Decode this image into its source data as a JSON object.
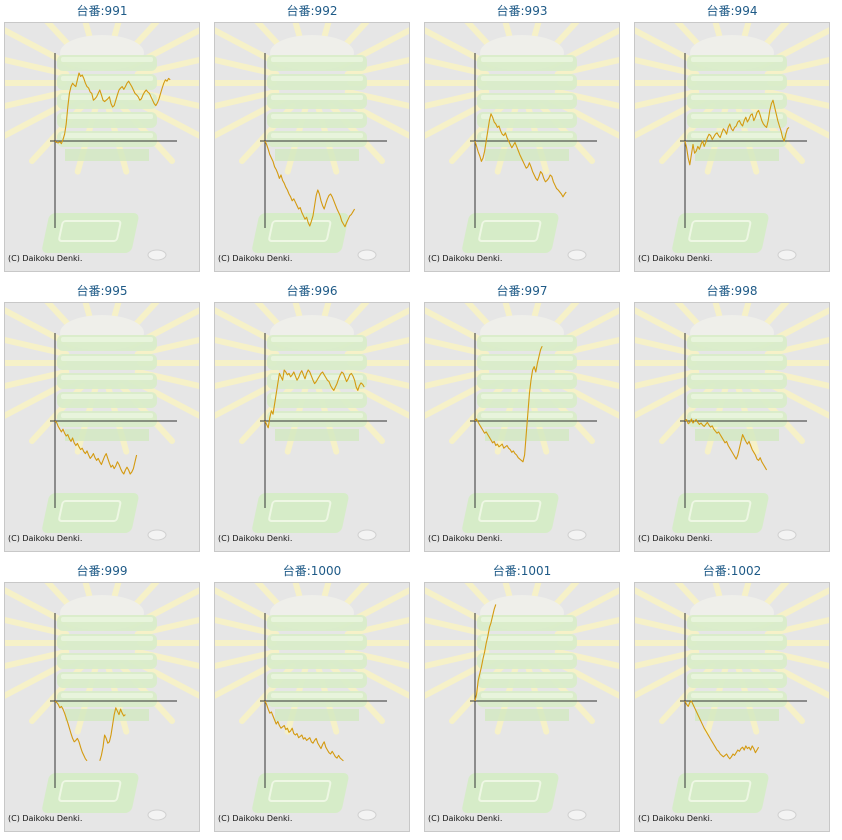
{
  "colors": {
    "line": "#d49a10",
    "axis": "#333333",
    "title": "#1e5a87"
  },
  "copyright": "(C) Daikoku Denki.",
  "chart_data": [
    {
      "type": "line",
      "title": "台番:991",
      "values": [
        0,
        -2,
        -3,
        -1,
        -4,
        2,
        10,
        25,
        50,
        70,
        80,
        85,
        82,
        80,
        90,
        100,
        95,
        97,
        92,
        85,
        80,
        78,
        72,
        70,
        60,
        62,
        65,
        70,
        75,
        68,
        60,
        58,
        60,
        62,
        65,
        55,
        50,
        52,
        60,
        68,
        75,
        78,
        80,
        76,
        80,
        85,
        88,
        84,
        80,
        75,
        70,
        68,
        65,
        60,
        62,
        68,
        72,
        75,
        72,
        70,
        65,
        60,
        55,
        52,
        56,
        62,
        70,
        78,
        85,
        90,
        88,
        92,
        90
      ]
    },
    {
      "type": "line",
      "title": "台番:992",
      "values": [
        0,
        -5,
        -12,
        -20,
        -25,
        -30,
        -38,
        -42,
        -48,
        -55,
        -50,
        -58,
        -62,
        -68,
        -72,
        -78,
        -82,
        -88,
        -85,
        -90,
        -95,
        -100,
        -98,
        -105,
        -110,
        -115,
        -112,
        -120,
        -125,
        -118,
        -110,
        -95,
        -80,
        -72,
        -78,
        -88,
        -95,
        -100,
        -92,
        -85,
        -80,
        -78,
        -82,
        -88,
        -94,
        -100,
        -105,
        -110,
        -118,
        -122,
        -126,
        -120,
        -115,
        -110,
        -108,
        -104,
        -100
      ]
    },
    {
      "type": "line",
      "title": "台番:993",
      "values": [
        0,
        -8,
        -16,
        -22,
        -30,
        -25,
        -15,
        0,
        15,
        30,
        40,
        35,
        28,
        25,
        20,
        22,
        15,
        10,
        8,
        12,
        5,
        0,
        -5,
        -10,
        -6,
        -2,
        -8,
        -14,
        -20,
        -25,
        -30,
        -35,
        -40,
        -38,
        -32,
        -38,
        -45,
        -50,
        -55,
        -58,
        -52,
        -45,
        -48,
        -55,
        -60,
        -58,
        -55,
        -50,
        -52,
        -60,
        -65,
        -70,
        -72,
        -75,
        -78,
        -82,
        -78,
        -75
      ]
    },
    {
      "type": "line",
      "title": "台番:994",
      "values": [
        0,
        -10,
        -25,
        -35,
        -20,
        -5,
        -18,
        -15,
        -8,
        -12,
        -5,
        0,
        -8,
        -2,
        5,
        10,
        8,
        2,
        6,
        10,
        12,
        8,
        5,
        12,
        18,
        15,
        10,
        20,
        25,
        18,
        15,
        20,
        22,
        28,
        30,
        25,
        22,
        30,
        35,
        28,
        32,
        38,
        40,
        30,
        35,
        42,
        45,
        38,
        30,
        25,
        22,
        20,
        30,
        45,
        55,
        60,
        50,
        40,
        30,
        22,
        15,
        5,
        0,
        10,
        18,
        20
      ]
    },
    {
      "type": "line",
      "title": "台番:995",
      "values": [
        0,
        -2,
        -8,
        -12,
        -16,
        -12,
        -18,
        -22,
        -20,
        -26,
        -30,
        -25,
        -32,
        -36,
        -33,
        -38,
        -42,
        -40,
        -45,
        -48,
        -44,
        -50,
        -55,
        -52,
        -48,
        -54,
        -58,
        -55,
        -60,
        -64,
        -58,
        -52,
        -48,
        -55,
        -62,
        -68,
        -65,
        -70,
        -66,
        -60,
        -64,
        -70,
        -75,
        -78,
        -72,
        -68,
        -72,
        -78,
        -75,
        -70,
        -60,
        -50
      ]
    },
    {
      "type": "line",
      "title": "台番:996",
      "values": [
        0,
        -5,
        -10,
        5,
        15,
        10,
        25,
        40,
        55,
        70,
        65,
        60,
        75,
        72,
        68,
        70,
        65,
        68,
        72,
        66,
        60,
        64,
        70,
        74,
        68,
        62,
        70,
        75,
        72,
        66,
        60,
        55,
        58,
        62,
        66,
        70,
        72,
        68,
        64,
        60,
        58,
        52,
        48,
        45,
        50,
        55,
        62,
        68,
        72,
        70,
        64,
        58,
        62,
        68,
        70,
        66,
        60,
        50,
        45,
        52,
        56,
        54,
        50
      ]
    },
    {
      "type": "line",
      "title": "台番:997",
      "values": [
        0,
        3,
        -2,
        -6,
        -10,
        -14,
        -18,
        -16,
        -20,
        -24,
        -28,
        -32,
        -30,
        -36,
        -34,
        -38,
        -36,
        -34,
        -40,
        -38,
        -36,
        -40,
        -42,
        -46,
        -44,
        -48,
        -50,
        -54,
        -56,
        -58,
        -60,
        -50,
        -20,
        10,
        40,
        60,
        75,
        80,
        72,
        85,
        95,
        105,
        110
      ]
    },
    {
      "type": "line",
      "title": "台番:998",
      "values": [
        0,
        2,
        -4,
        -2,
        3,
        -3,
        0,
        2,
        -2,
        -5,
        -3,
        -6,
        -8,
        -5,
        -2,
        -6,
        -9,
        -7,
        -12,
        -15,
        -18,
        -16,
        -20,
        -24,
        -28,
        -32,
        -30,
        -36,
        -40,
        -44,
        -48,
        -52,
        -56,
        -50,
        -40,
        -30,
        -20,
        -25,
        -30,
        -34,
        -30,
        -36,
        -42,
        -46,
        -50,
        -56,
        -58,
        -54,
        -60,
        -64,
        -68,
        -72
      ]
    },
    {
      "type": "line",
      "title": "台番:999",
      "values": [
        0,
        -2,
        -5,
        -10,
        -8,
        -12,
        -18,
        -25,
        -32,
        -40,
        -48,
        -55,
        -60,
        -58,
        -55,
        -60,
        -68,
        -75,
        -80,
        -85,
        -88,
        null,
        null,
        null,
        null,
        null,
        null,
        null,
        -88,
        -80,
        -68,
        -50,
        -55,
        -62,
        -60,
        -50,
        -35,
        -20,
        -10,
        -15,
        -20,
        -12,
        -18,
        -22,
        -20
      ]
    },
    {
      "type": "line",
      "title": "台番:1000",
      "values": [
        0,
        -5,
        -12,
        -18,
        -16,
        -22,
        -28,
        -34,
        -30,
        -36,
        -40,
        -38,
        -36,
        -42,
        -40,
        -46,
        -44,
        -40,
        -48,
        -50,
        -48,
        -54,
        -52,
        -50,
        -56,
        -54,
        -58,
        -56,
        -54,
        -60,
        -62,
        -58,
        -55,
        -62,
        -66,
        -70,
        -64,
        -60,
        -68,
        -72,
        -76,
        -78,
        -74,
        -78,
        -82,
        -84,
        -80,
        -84,
        -86,
        -88
      ]
    },
    {
      "type": "line",
      "title": "台番:1001",
      "values": [
        0,
        10,
        30,
        40,
        50,
        62,
        72,
        85,
        95,
        108,
        115,
        125,
        135,
        142
      ]
    },
    {
      "type": "line",
      "title": "台番:1002",
      "values": [
        0,
        -5,
        -8,
        -2,
        0,
        -5,
        -10,
        -15,
        -20,
        -25,
        -30,
        -35,
        -40,
        -44,
        -48,
        -52,
        -56,
        -60,
        -64,
        -68,
        -72,
        -74,
        -78,
        -80,
        -82,
        -80,
        -78,
        -82,
        -85,
        -82,
        -78,
        -80,
        -76,
        -72,
        -74,
        -70,
        -68,
        -72,
        -66,
        -70,
        -68,
        -72,
        -66,
        -70,
        -76,
        -72,
        -68
      ]
    }
  ]
}
